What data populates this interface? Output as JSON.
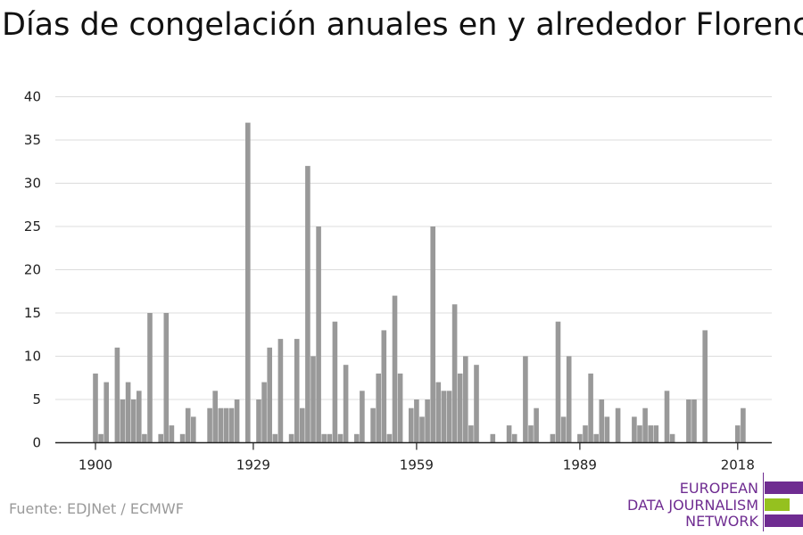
{
  "title": "Días de congelación anuales en y alrededor Florencia",
  "source": "Fuente: EDJNet / ECMWF",
  "logo": {
    "lines": [
      "EUROPEAN",
      "DATA JOURNALISM",
      "NETWORK"
    ],
    "colors": {
      "primary": "#6f2c91",
      "accent": "#95c11f"
    }
  },
  "chart_data": {
    "type": "bar",
    "title": "Días de congelación anuales en y alrededor Florencia",
    "xlabel": "",
    "ylabel": "",
    "x": [
      1900,
      1901,
      1902,
      1903,
      1904,
      1905,
      1906,
      1907,
      1908,
      1909,
      1910,
      1911,
      1912,
      1913,
      1914,
      1915,
      1916,
      1917,
      1918,
      1919,
      1920,
      1921,
      1922,
      1923,
      1924,
      1925,
      1926,
      1927,
      1928,
      1929,
      1930,
      1931,
      1932,
      1933,
      1934,
      1935,
      1936,
      1937,
      1938,
      1939,
      1940,
      1941,
      1942,
      1943,
      1944,
      1945,
      1946,
      1947,
      1948,
      1949,
      1950,
      1951,
      1952,
      1953,
      1954,
      1955,
      1956,
      1957,
      1958,
      1959,
      1960,
      1961,
      1962,
      1963,
      1964,
      1965,
      1966,
      1967,
      1968,
      1969,
      1970,
      1971,
      1972,
      1973,
      1974,
      1975,
      1976,
      1977,
      1978,
      1979,
      1980,
      1981,
      1982,
      1983,
      1984,
      1985,
      1986,
      1987,
      1988,
      1989,
      1990,
      1991,
      1992,
      1993,
      1994,
      1995,
      1996,
      1997,
      1998,
      1999,
      2000,
      2001,
      2002,
      2003,
      2004,
      2005,
      2006,
      2007,
      2008,
      2009,
      2010,
      2011,
      2012,
      2013,
      2014,
      2015,
      2016,
      2017,
      2018,
      2019,
      2020
    ],
    "values": [
      8,
      1,
      7,
      0,
      11,
      5,
      7,
      5,
      6,
      1,
      15,
      0,
      1,
      15,
      2,
      0,
      1,
      4,
      3,
      0,
      0,
      4,
      6,
      4,
      4,
      4,
      5,
      0,
      37,
      0,
      5,
      7,
      11,
      1,
      12,
      0,
      1,
      12,
      4,
      32,
      10,
      25,
      1,
      1,
      14,
      1,
      9,
      0,
      1,
      6,
      0,
      4,
      8,
      13,
      1,
      17,
      8,
      0,
      4,
      5,
      3,
      5,
      25,
      7,
      6,
      6,
      16,
      8,
      10,
      2,
      9,
      0,
      0,
      1,
      0,
      0,
      2,
      1,
      0,
      10,
      2,
      4,
      0,
      0,
      1,
      14,
      3,
      10,
      0,
      1,
      2,
      8,
      1,
      5,
      3,
      0,
      4,
      0,
      0,
      3,
      2,
      4,
      2,
      2,
      0,
      6,
      1,
      0,
      0,
      5,
      5,
      0,
      13,
      0,
      0,
      0,
      0,
      0,
      2,
      4,
      0
    ],
    "x_ticks": [
      1900,
      1929,
      1959,
      1989,
      2018
    ],
    "y_ticks": [
      0,
      5,
      10,
      15,
      20,
      25,
      30,
      35,
      40
    ],
    "xlim": [
      1900,
      2020
    ],
    "ylim": [
      0,
      40
    ],
    "grid": true,
    "bar_color": "#999999"
  }
}
